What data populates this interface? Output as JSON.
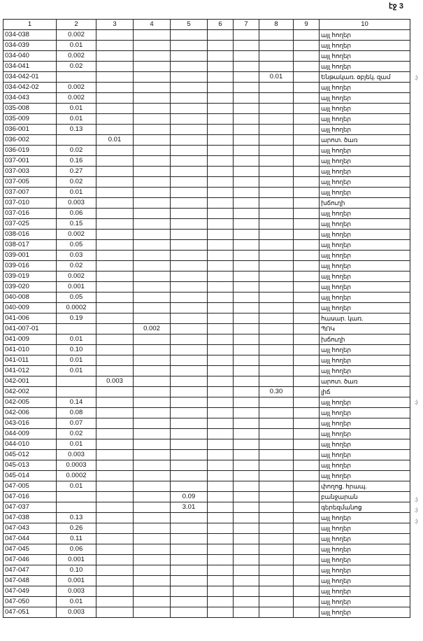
{
  "page_label": "էջ 3",
  "columns": [
    "1",
    "2",
    "3",
    "4",
    "5",
    "6",
    "7",
    "8",
    "9",
    "10"
  ],
  "rows": [
    {
      "c1": "034-038",
      "c2": "0.002",
      "c10": "այլ հողեր"
    },
    {
      "c1": "034-039",
      "c2": "0.01",
      "c10": "այլ հողեր"
    },
    {
      "c1": "034-040",
      "c2": "0.002",
      "c10": "այլ հողեր"
    },
    {
      "c1": "034-041",
      "c2": "0.02",
      "c10": "այլ հողեր"
    },
    {
      "c1": "034-042-01",
      "c8": "0.01",
      "c10": "Ենթակառ. օբյեկ. զամ",
      "note": ";)"
    },
    {
      "c1": "034-042-02",
      "c2": "0.002",
      "c10": "այլ հողեր"
    },
    {
      "c1": "034-043",
      "c2": "0.002",
      "c10": "այլ հողեր"
    },
    {
      "c1": "035-008",
      "c2": "0.01",
      "c10": "այլ հողեր"
    },
    {
      "c1": "035-009",
      "c2": "0.01",
      "c10": "այլ հողեր"
    },
    {
      "c1": "036-001",
      "c2": "0.13",
      "c10": "այլ հողեր"
    },
    {
      "c1": "036-002",
      "c3": "0.01",
      "c10": "արոտ. ծառ"
    },
    {
      "c1": "036-019",
      "c2": "0.02",
      "c10": "այլ հողեր"
    },
    {
      "c1": "037-001",
      "c2": "0.16",
      "c10": "այլ հողեր"
    },
    {
      "c1": "037-003",
      "c2": "0.27",
      "c10": "այլ հողեր"
    },
    {
      "c1": "037-005",
      "c2": "0.02",
      "c10": "այլ հողեր"
    },
    {
      "c1": "037-007",
      "c2": "0.01",
      "c10": "այլ հողեր"
    },
    {
      "c1": "037-010",
      "c2": "0.003",
      "c10": "խճուղի"
    },
    {
      "c1": "037-016",
      "c2": "0.06",
      "c10": "այլ հողեր"
    },
    {
      "c1": "037-025",
      "c2": "0.15",
      "c10": "այլ հողեր"
    },
    {
      "c1": "038-016",
      "c2": "0.002",
      "c10": "այլ հողեր"
    },
    {
      "c1": "038-017",
      "c2": "0.05",
      "c10": "այլ հողեր"
    },
    {
      "c1": "039-001",
      "c2": "0.03",
      "c10": "այլ հողեր"
    },
    {
      "c1": "039-016",
      "c2": "0.02",
      "c10": "այլ հողեր"
    },
    {
      "c1": "039-019",
      "c2": "0.002",
      "c10": "այլ հողեր"
    },
    {
      "c1": "039-020",
      "c2": "0.001",
      "c10": "այլ հողեր"
    },
    {
      "c1": "040-008",
      "c2": "0.05",
      "c10": "այլ հողեր"
    },
    {
      "c1": "040-009",
      "c2": "0.0002",
      "c10": "այլ հողեր"
    },
    {
      "c1": "041-006",
      "c2": "0.19",
      "c10": "հասար. կառ."
    },
    {
      "c1": "041-007-01",
      "c4": "0.002",
      "c10": "ՊՈԿ"
    },
    {
      "c1": "041-009",
      "c2": "0.01",
      "c10": "խճուղի"
    },
    {
      "c1": "041-010",
      "c2": "0.10",
      "c10": "այլ հողեր"
    },
    {
      "c1": "041-011",
      "c2": "0.01",
      "c10": "այլ հողեր"
    },
    {
      "c1": "041-012",
      "c2": "0.01",
      "c10": "այլ հողեր"
    },
    {
      "c1": "042-001",
      "c3": "0.003",
      "c10": "արոտ. ծառ"
    },
    {
      "c1": "042-002",
      "c8": "0.30",
      "c10": "լիճ",
      "note": ";)"
    },
    {
      "c1": "042-005",
      "c2": "0.14",
      "c10": "այլ հողեր"
    },
    {
      "c1": "042-006",
      "c2": "0.08",
      "c10": "այլ հողեր"
    },
    {
      "c1": "043-016",
      "c2": "0.07",
      "c10": "այլ հողեր"
    },
    {
      "c1": "044-009",
      "c2": "0.02",
      "c10": "այլ հողեր"
    },
    {
      "c1": "044-010",
      "c2": "0.01",
      "c10": "այլ հողեր"
    },
    {
      "c1": "045-012",
      "c2": "0.003",
      "c10": "այլ հողեր"
    },
    {
      "c1": "045-013",
      "c2": "0.0003",
      "c10": "այլ հողեր"
    },
    {
      "c1": "045-014",
      "c2": "0.0002",
      "c10": "այլ հողեր"
    },
    {
      "c1": "047-005",
      "c2": "0.01",
      "c10": "փողոց. հրապ.",
      "note": ";)"
    },
    {
      "c1": "047-016",
      "c5": "0.09",
      "c10": "բանջարան",
      "note": ";)"
    },
    {
      "c1": "047-037",
      "c5": "3.01",
      "c10": "գերեզմանոց",
      "note": ";)"
    },
    {
      "c1": "047-038",
      "c2": "0.13",
      "c10": "այլ հողեր"
    },
    {
      "c1": "047-043",
      "c2": "0.26",
      "c10": "այլ հողեր"
    },
    {
      "c1": "047-044",
      "c2": "0.11",
      "c10": "այլ հողեր"
    },
    {
      "c1": "047-045",
      "c2": "0.06",
      "c10": "այլ հողեր"
    },
    {
      "c1": "047-046",
      "c2": "0.001",
      "c10": "այլ հողեր"
    },
    {
      "c1": "047-047",
      "c2": "0.10",
      "c10": "այլ հողեր"
    },
    {
      "c1": "047-048",
      "c2": "0.001",
      "c10": "այլ հողեր"
    },
    {
      "c1": "047-049",
      "c2": "0.003",
      "c10": "այլ հողեր"
    },
    {
      "c1": "047-050",
      "c2": "0.01",
      "c10": "այլ հողեր"
    },
    {
      "c1": "047-051",
      "c2": "0.003",
      "c10": "այլ հողեր"
    }
  ]
}
